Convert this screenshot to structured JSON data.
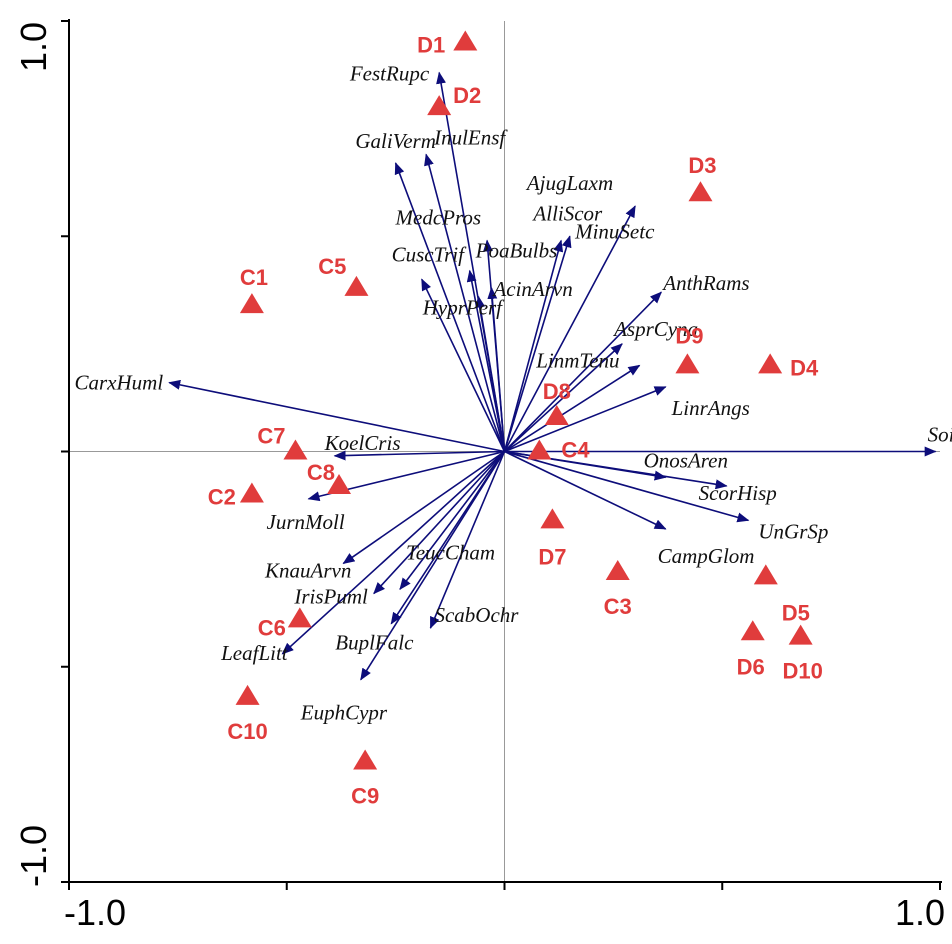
{
  "chart_data": {
    "type": "scatter",
    "subtype": "ordination biplot",
    "xlim": [
      -1.0,
      1.0
    ],
    "ylim": [
      -1.0,
      1.0
    ],
    "x_ticks": [
      -1.0,
      -0.5,
      0,
      0.5,
      1.0
    ],
    "y_ticks": [
      -1.0,
      -0.5,
      0,
      0.5,
      1.0
    ],
    "x_tick_labels": [
      "-1.0",
      "1.0"
    ],
    "y_tick_labels": [
      "1.0",
      "-1.0"
    ],
    "zero_lines": true,
    "colors": {
      "sites": "#e03c3c",
      "arrows": "#0d0d7a",
      "axes": "#000000",
      "zero_lines": "#999999"
    },
    "sites": [
      {
        "label": "D1",
        "x": -0.09,
        "y": 0.95
      },
      {
        "label": "D2",
        "x": -0.15,
        "y": 0.8
      },
      {
        "label": "D3",
        "x": 0.45,
        "y": 0.6
      },
      {
        "label": "C1",
        "x": -0.58,
        "y": 0.34
      },
      {
        "label": "C5",
        "x": -0.34,
        "y": 0.38
      },
      {
        "label": "D9",
        "x": 0.42,
        "y": 0.2
      },
      {
        "label": "D4",
        "x": 0.61,
        "y": 0.2
      },
      {
        "label": "D8",
        "x": 0.12,
        "y": 0.08
      },
      {
        "label": "C7",
        "x": -0.48,
        "y": 0.0
      },
      {
        "label": "C4",
        "x": 0.08,
        "y": 0.0
      },
      {
        "label": "C8",
        "x": -0.38,
        "y": -0.08
      },
      {
        "label": "C2",
        "x": -0.58,
        "y": -0.1
      },
      {
        "label": "D7",
        "x": 0.11,
        "y": -0.16
      },
      {
        "label": "C3",
        "x": 0.26,
        "y": -0.28
      },
      {
        "label": "D5",
        "x": 0.6,
        "y": -0.29
      },
      {
        "label": "D6",
        "x": 0.57,
        "y": -0.42
      },
      {
        "label": "D10",
        "x": 0.68,
        "y": -0.43
      },
      {
        "label": "C6",
        "x": -0.47,
        "y": -0.39
      },
      {
        "label": "C10",
        "x": -0.59,
        "y": -0.57
      },
      {
        "label": "C9",
        "x": -0.32,
        "y": -0.72
      }
    ],
    "vectors": [
      {
        "label": "Soil",
        "x": 0.99,
        "y": 0.0
      },
      {
        "label": "FestRupc",
        "x": -0.15,
        "y": 0.88
      },
      {
        "label": "GaliVerm",
        "x": -0.25,
        "y": 0.67
      },
      {
        "label": "InulEnsf",
        "x": -0.18,
        "y": 0.69
      },
      {
        "label": "AjugLaxm",
        "x": 0.3,
        "y": 0.57
      },
      {
        "label": "MedcPros",
        "x": -0.04,
        "y": 0.49
      },
      {
        "label": "AlliScor",
        "x": 0.15,
        "y": 0.5
      },
      {
        "label": "MinuSetc",
        "x": 0.13,
        "y": 0.49
      },
      {
        "label": "CuscTrif",
        "x": -0.19,
        "y": 0.4
      },
      {
        "label": "PoaBulbs",
        "x": -0.08,
        "y": 0.42
      },
      {
        "label": "AcinArvn",
        "x": -0.03,
        "y": 0.38
      },
      {
        "label": "HyprPerf",
        "x": -0.06,
        "y": 0.36
      },
      {
        "label": "AnthRams",
        "x": 0.36,
        "y": 0.37
      },
      {
        "label": "AsprCyna",
        "x": 0.27,
        "y": 0.25
      },
      {
        "label": "LinmTenu",
        "x": 0.31,
        "y": 0.2
      },
      {
        "label": "LinrAngs",
        "x": 0.37,
        "y": 0.15
      },
      {
        "label": "CarxHuml",
        "x": -0.77,
        "y": 0.16
      },
      {
        "label": "KoelCris",
        "x": -0.39,
        "y": -0.01
      },
      {
        "label": "JurnMoll",
        "x": -0.45,
        "y": -0.11
      },
      {
        "label": "OnosAren",
        "x": 0.37,
        "y": -0.06
      },
      {
        "label": "ScorHisp",
        "x": 0.51,
        "y": -0.08
      },
      {
        "label": "UnGrSp",
        "x": 0.56,
        "y": -0.16
      },
      {
        "label": "CampGlom",
        "x": 0.37,
        "y": -0.18
      },
      {
        "label": "KnauArvn",
        "x": -0.37,
        "y": -0.26
      },
      {
        "label": "IrisPuml",
        "x": -0.3,
        "y": -0.33
      },
      {
        "label": "TeucCham",
        "x": -0.24,
        "y": -0.32
      },
      {
        "label": "BuplFalc",
        "x": -0.26,
        "y": -0.4
      },
      {
        "label": "ScabOchr",
        "x": -0.17,
        "y": -0.41
      },
      {
        "label": "LeafLitt",
        "x": -0.51,
        "y": -0.47
      },
      {
        "label": "EuphCypr",
        "x": -0.33,
        "y": -0.53
      }
    ]
  }
}
